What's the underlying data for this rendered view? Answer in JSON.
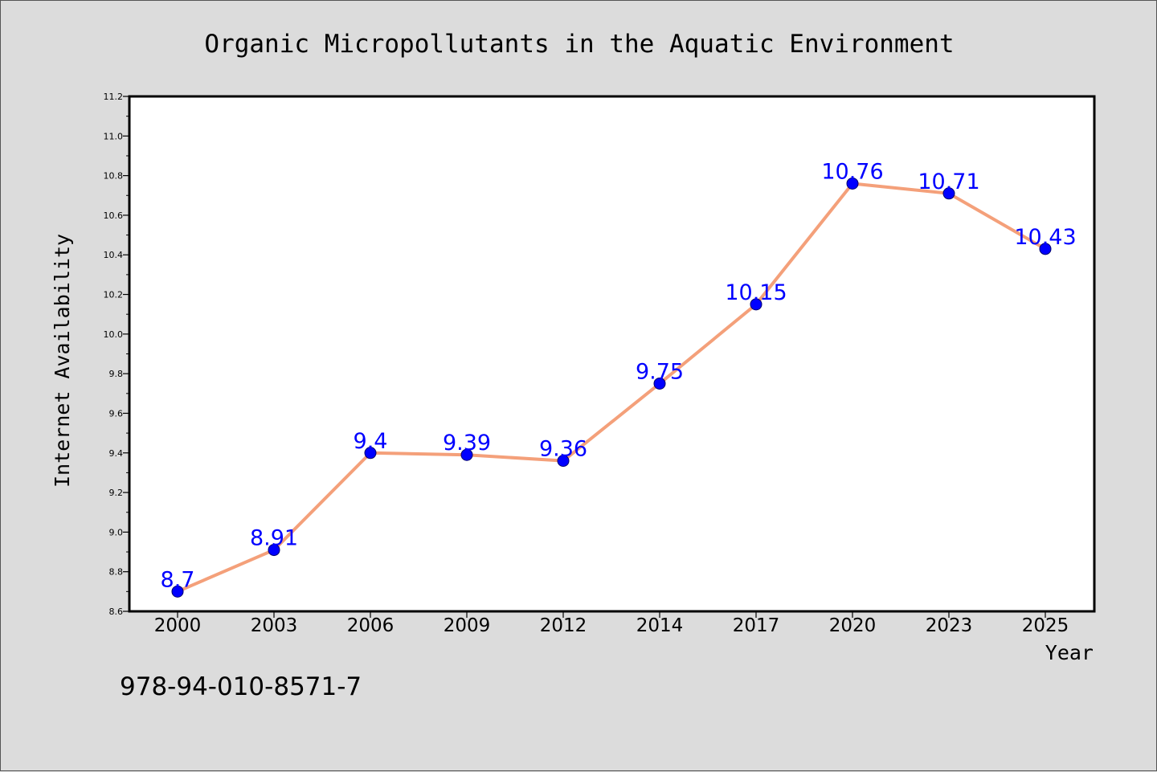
{
  "chart_data": {
    "type": "line",
    "title": "Organic Micropollutants in the Aquatic Environment",
    "xlabel": "Year",
    "ylabel": "Internet Availability",
    "categories": [
      "2000",
      "2003",
      "2006",
      "2009",
      "2012",
      "2014",
      "2017",
      "2020",
      "2023",
      "2025"
    ],
    "series": [
      {
        "values": [
          8.7,
          8.91,
          9.4,
          9.39,
          9.36,
          9.75,
          10.15,
          10.76,
          10.71,
          10.43
        ],
        "data_labels": [
          "8.7",
          "8.91",
          "9.4",
          "9.39",
          "9.36",
          "9.75",
          "10.15",
          "10.76",
          "10.71",
          "10.43"
        ]
      }
    ],
    "ylim": [
      8.6,
      11.2
    ],
    "yticks": [
      "8.6",
      "8.8",
      "9.0",
      "9.2",
      "9.4",
      "9.6",
      "9.8",
      "10.0",
      "10.2",
      "10.4",
      "10.6",
      "10.8",
      "11.0",
      "11.2"
    ],
    "grid": false,
    "legend": "none"
  },
  "footnote": "978-94-010-8571-7",
  "colors": {
    "background": "#dcdcdc",
    "plot_background": "#ffffff",
    "line": "#f4a07a",
    "marker": "#0000ff",
    "data_label": "#0000ff"
  }
}
